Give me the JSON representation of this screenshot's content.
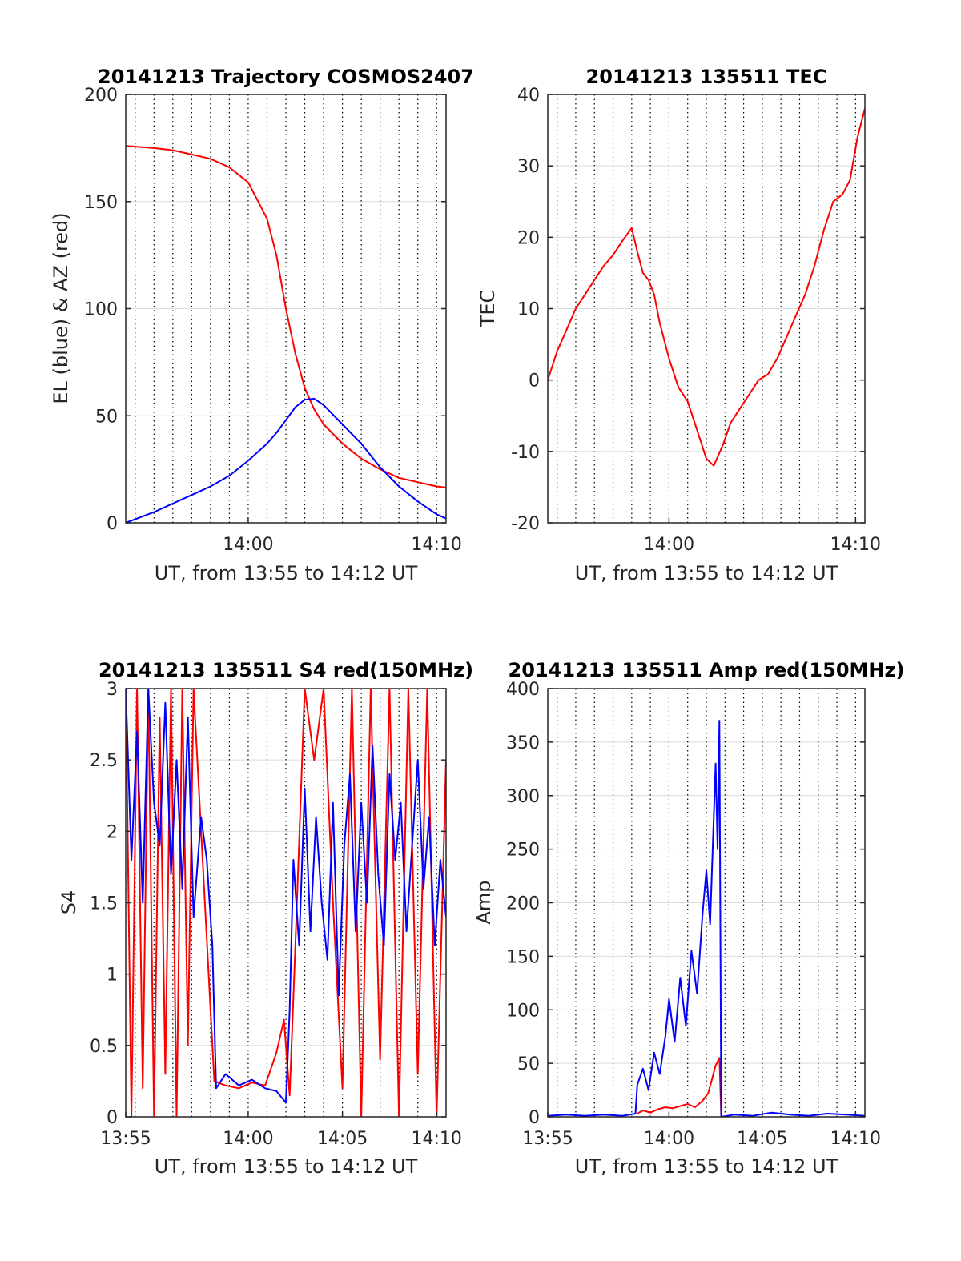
{
  "colors": {
    "blue": "#0000ff",
    "red": "#ff0000",
    "axis": "#262626",
    "grid": "#dcdcdc"
  },
  "chart_data": [
    {
      "type": "line",
      "title": "20141213 Trajectory COSMOS2407",
      "xlabel": "UT, from 13:55 to 14:12 UT",
      "ylabel": "EL (blue) & AZ (red)",
      "xlim": [
        13.5,
        30.5
      ],
      "ylim": [
        0,
        200
      ],
      "xticks": [
        {
          "v": 20,
          "label": "14:00"
        },
        {
          "v": 30,
          "label": "14:10"
        }
      ],
      "yticks": [
        {
          "v": 0,
          "label": "0"
        },
        {
          "v": 50,
          "label": "50"
        },
        {
          "v": 100,
          "label": "100"
        },
        {
          "v": 150,
          "label": "150"
        },
        {
          "v": 200,
          "label": "200"
        }
      ],
      "grid": "dotted-vertical",
      "series": [
        {
          "color": "#ff0000",
          "x": [
            13.5,
            15,
            16,
            17,
            18,
            19,
            20,
            21,
            21.5,
            22,
            22.5,
            23,
            23.5,
            24,
            25,
            26,
            27,
            28,
            29,
            30,
            30.5
          ],
          "y": [
            176,
            175,
            174,
            172,
            170,
            166,
            159,
            142,
            125,
            100,
            79,
            63,
            53,
            46,
            37,
            30,
            25,
            21,
            19,
            17,
            16.5
          ]
        },
        {
          "color": "#0000ff",
          "x": [
            13.5,
            15,
            16,
            17,
            18,
            19,
            20,
            21,
            21.5,
            22,
            22.5,
            23,
            23.5,
            24,
            25,
            26,
            27,
            28,
            29,
            30,
            30.5
          ],
          "y": [
            0,
            5,
            9,
            13,
            17,
            22,
            29,
            37,
            42,
            48,
            54,
            57.5,
            58,
            55,
            46,
            37,
            26,
            17,
            10,
            4,
            2
          ]
        }
      ]
    },
    {
      "type": "line",
      "title": "20141213 135511 TEC",
      "xlabel": "UT, from 13:55 to 14:12 UT",
      "ylabel": "TEC",
      "xlim": [
        13.5,
        30.5
      ],
      "ylim": [
        -20,
        40
      ],
      "xticks": [
        {
          "v": 20,
          "label": "14:00"
        },
        {
          "v": 30,
          "label": "14:10"
        }
      ],
      "yticks": [
        {
          "v": -20,
          "label": "-20"
        },
        {
          "v": -10,
          "label": "-10"
        },
        {
          "v": 0,
          "label": "0"
        },
        {
          "v": 10,
          "label": "10"
        },
        {
          "v": 20,
          "label": "20"
        },
        {
          "v": 30,
          "label": "30"
        },
        {
          "v": 40,
          "label": "40"
        }
      ],
      "grid": "dotted-vertical",
      "series": [
        {
          "color": "#ff0000",
          "x": [
            13.5,
            14,
            14.5,
            15,
            15.5,
            16,
            16.5,
            17,
            17.5,
            18,
            18.3,
            18.6,
            18.9,
            19.2,
            19.5,
            20,
            20.5,
            21,
            21.5,
            22,
            22.4,
            22.9,
            23.3,
            23.8,
            24.3,
            24.8,
            25.3,
            25.8,
            26.3,
            26.8,
            27.3,
            27.8,
            28.3,
            28.8,
            29.3,
            29.7,
            30.1,
            30.5
          ],
          "y": [
            0,
            4,
            7,
            10,
            12,
            14,
            16,
            17.5,
            19.5,
            21.3,
            18,
            15,
            14,
            12,
            8,
            3,
            -1,
            -3,
            -7,
            -11,
            -12,
            -9,
            -6,
            -4,
            -2,
            0,
            0.8,
            3,
            6,
            9,
            12,
            16,
            21,
            25,
            26,
            28,
            34,
            38
          ]
        }
      ]
    },
    {
      "type": "line",
      "title": "20141213 135511 S4 red(150MHz)",
      "xlabel": "UT, from 13:55 to 14:12 UT",
      "ylabel": "S4",
      "xlim": [
        13.5,
        30.5
      ],
      "ylim": [
        0,
        3
      ],
      "xticks": [
        {
          "v": 13.5,
          "label": "13:55"
        },
        {
          "v": 20,
          "label": "14:00"
        },
        {
          "v": 25,
          "label": "14:05"
        },
        {
          "v": 30,
          "label": "14:10"
        }
      ],
      "yticks": [
        {
          "v": 0,
          "label": "0"
        },
        {
          "v": 0.5,
          "label": "0.5"
        },
        {
          "v": 1,
          "label": "1"
        },
        {
          "v": 1.5,
          "label": "1.5"
        },
        {
          "v": 2,
          "label": "2"
        },
        {
          "v": 2.5,
          "label": "2.5"
        },
        {
          "v": 3,
          "label": "3"
        }
      ],
      "grid": "dotted-vertical",
      "series": [
        {
          "color": "#ff0000",
          "x": [
            13.5,
            13.8,
            14.1,
            14.4,
            14.7,
            15,
            15.3,
            15.6,
            15.9,
            16.2,
            16.5,
            16.8,
            17.1,
            18.2,
            18.8,
            19.5,
            20.2,
            20.9,
            21.5,
            21.9,
            22.2,
            22.5,
            23,
            23.5,
            24,
            24.5,
            25,
            25.5,
            26,
            26.5,
            27,
            27.5,
            28,
            28.5,
            29,
            29.5,
            30,
            30.5
          ],
          "y": [
            3,
            0,
            3,
            0.2,
            3,
            0,
            2.8,
            0.3,
            3,
            0,
            3,
            0.5,
            3,
            0.25,
            0.22,
            0.2,
            0.24,
            0.22,
            0.45,
            0.68,
            0.15,
            1.2,
            3,
            2.5,
            3,
            1.5,
            0.2,
            3,
            0,
            3,
            0.4,
            3,
            0,
            3,
            0.3,
            3,
            0,
            2.5
          ]
        },
        {
          "color": "#0000ff",
          "x": [
            13.5,
            13.8,
            14.1,
            14.4,
            14.7,
            15,
            15.3,
            15.6,
            15.9,
            16.2,
            16.5,
            16.8,
            17.1,
            17.5,
            17.8,
            18.1,
            18.3,
            18.8,
            19.5,
            20.2,
            20.9,
            21.5,
            22,
            22.2,
            22.4,
            22.7,
            23,
            23.3,
            23.6,
            23.9,
            24.2,
            24.5,
            24.8,
            25.1,
            25.4,
            25.7,
            26,
            26.3,
            26.6,
            26.9,
            27.2,
            27.5,
            27.8,
            28.1,
            28.4,
            28.7,
            29,
            29.3,
            29.6,
            29.9,
            30.2,
            30.5
          ],
          "y": [
            3,
            1.8,
            2.7,
            1.5,
            3,
            2.2,
            1.9,
            2.9,
            1.7,
            2.5,
            1.6,
            2.8,
            1.4,
            2.1,
            1.8,
            1.2,
            0.2,
            0.3,
            0.22,
            0.26,
            0.2,
            0.18,
            0.1,
            0.75,
            1.8,
            1.2,
            2.3,
            1.3,
            2.1,
            1.5,
            1.1,
            2.2,
            0.85,
            1.9,
            2.4,
            1.3,
            2.2,
            1.5,
            2.6,
            1.7,
            1.2,
            2.4,
            1.8,
            2.2,
            1.3,
            1.9,
            2.5,
            1.6,
            2.1,
            1.2,
            1.8,
            1.4
          ]
        }
      ]
    },
    {
      "type": "line",
      "title": "20141213 135511 Amp red(150MHz)",
      "xlabel": "UT, from 13:55 to 14:12 UT",
      "ylabel": "Amp",
      "xlim": [
        13.5,
        30.5
      ],
      "ylim": [
        0,
        400
      ],
      "xticks": [
        {
          "v": 13.5,
          "label": "13:55"
        },
        {
          "v": 20,
          "label": "14:00"
        },
        {
          "v": 25,
          "label": "14:05"
        },
        {
          "v": 30,
          "label": "14:10"
        }
      ],
      "yticks": [
        {
          "v": 0,
          "label": "0"
        },
        {
          "v": 50,
          "label": "50"
        },
        {
          "v": 100,
          "label": "100"
        },
        {
          "v": 150,
          "label": "150"
        },
        {
          "v": 200,
          "label": "200"
        },
        {
          "v": 250,
          "label": "250"
        },
        {
          "v": 300,
          "label": "300"
        },
        {
          "v": 350,
          "label": "350"
        },
        {
          "v": 400,
          "label": "400"
        }
      ],
      "grid": "dotted-vertical",
      "series": [
        {
          "color": "#ff0000",
          "x": [
            18.3,
            18.6,
            19,
            19.4,
            19.8,
            20.2,
            20.6,
            21,
            21.4,
            21.8,
            22.1,
            22.3,
            22.5,
            22.7,
            22.8
          ],
          "y": [
            3,
            6,
            4,
            7,
            9,
            8,
            10,
            12,
            9,
            15,
            22,
            35,
            48,
            55,
            0
          ]
        },
        {
          "color": "#0000ff",
          "x": [
            13.5,
            14.5,
            15.5,
            16.5,
            17.5,
            18.2,
            18.3,
            18.6,
            18.9,
            19.2,
            19.5,
            19.8,
            20,
            20.3,
            20.6,
            20.9,
            21.2,
            21.5,
            21.8,
            22,
            22.2,
            22.4,
            22.5,
            22.6,
            22.7,
            22.8,
            23.5,
            24.5,
            25.5,
            26.5,
            27.5,
            28.5,
            29.5,
            30.5
          ],
          "y": [
            1,
            2,
            1,
            2,
            1,
            3,
            30,
            45,
            25,
            60,
            40,
            75,
            110,
            70,
            130,
            85,
            155,
            115,
            190,
            230,
            180,
            280,
            330,
            250,
            370,
            0,
            2,
            1,
            4,
            2,
            1,
            3,
            2,
            1
          ]
        }
      ]
    }
  ]
}
